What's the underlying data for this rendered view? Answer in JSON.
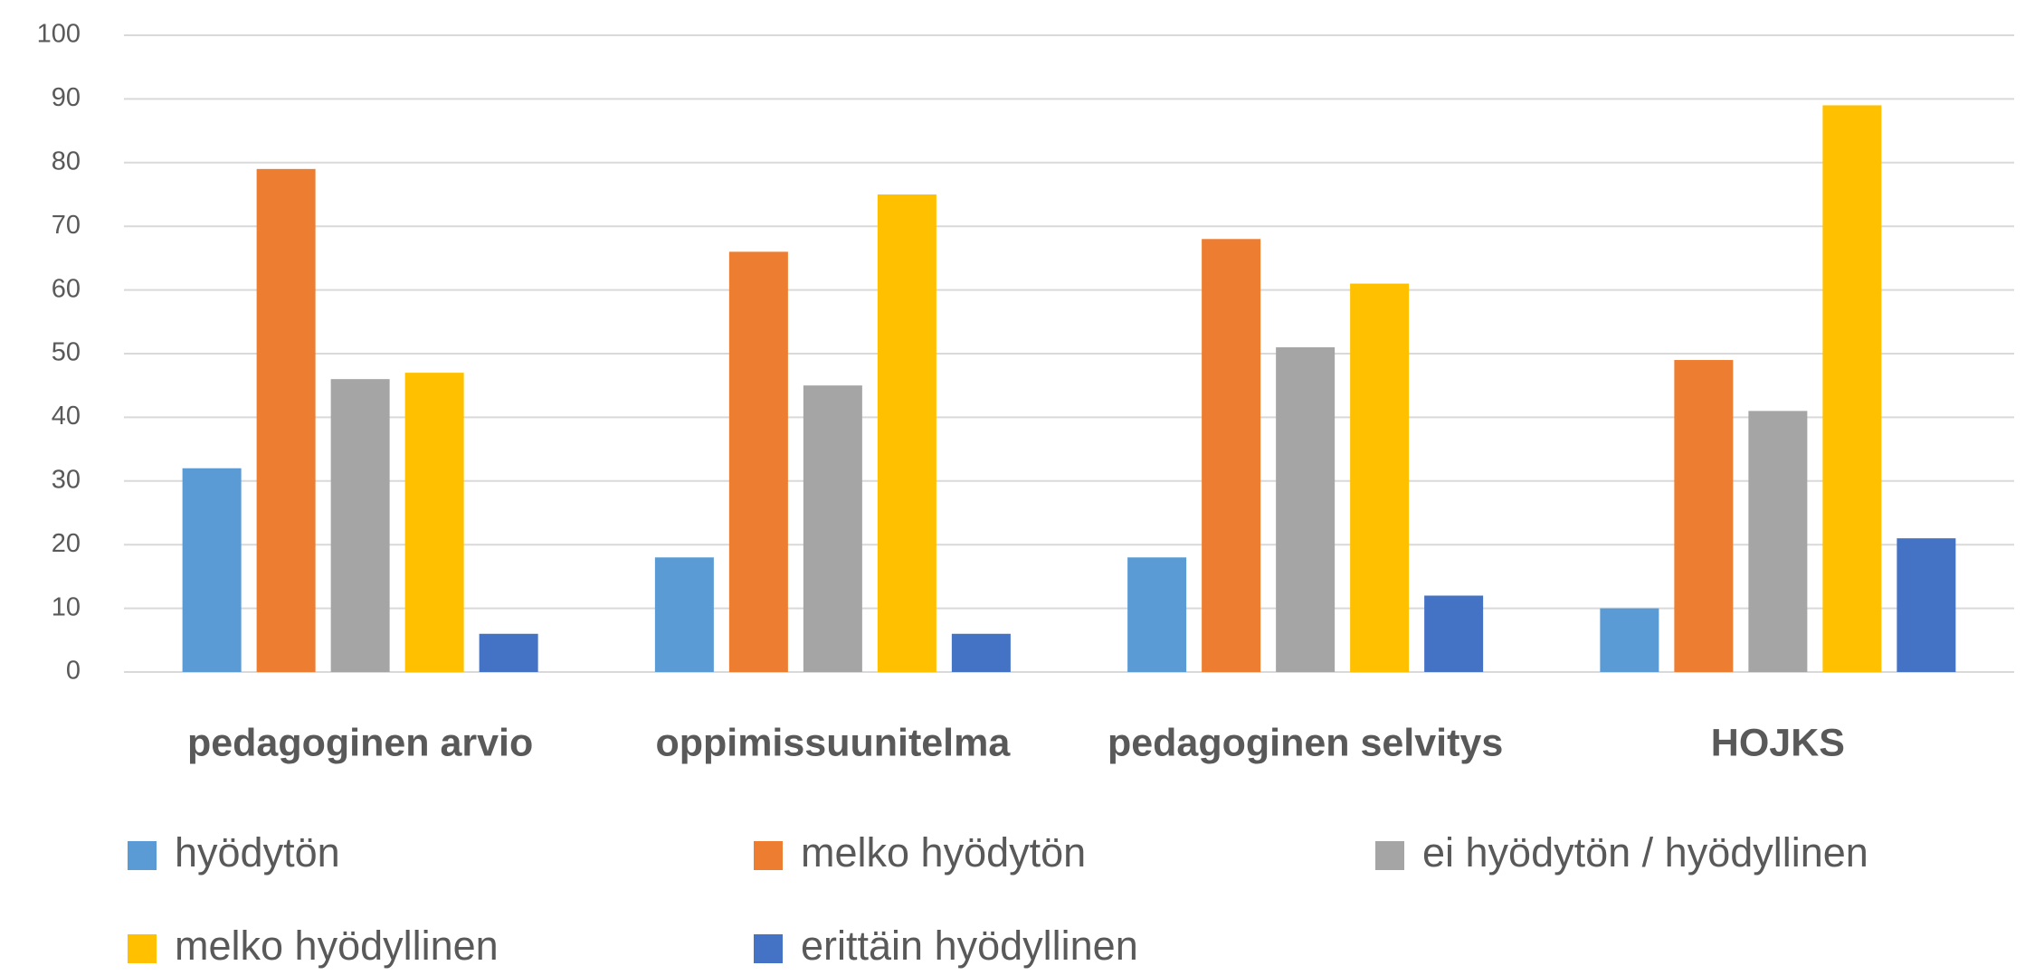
{
  "chart_data": {
    "type": "bar",
    "categories": [
      "pedagoginen arvio",
      "oppimissuunitelma",
      "pedagoginen selvitys",
      "HOJKS"
    ],
    "series": [
      {
        "name": "hyödytön",
        "color": "#5b9bd5",
        "values": [
          32,
          18,
          18,
          10
        ]
      },
      {
        "name": "melko hyödytön",
        "color": "#ed7d31",
        "values": [
          79,
          66,
          68,
          49
        ]
      },
      {
        "name": "ei hyödytön / hyödyllinen",
        "color": "#a5a5a5",
        "values": [
          46,
          45,
          51,
          41
        ]
      },
      {
        "name": "melko hyödyllinen",
        "color": "#ffc000",
        "values": [
          47,
          75,
          61,
          89
        ]
      },
      {
        "name": "erittäin hyödyllinen",
        "color": "#4472c4",
        "values": [
          6,
          6,
          12,
          21
        ]
      }
    ],
    "ylim": [
      0,
      100
    ],
    "yticks": [
      0,
      10,
      20,
      30,
      40,
      50,
      60,
      70,
      80,
      90,
      100
    ],
    "grid": true,
    "legend": "bottom"
  }
}
